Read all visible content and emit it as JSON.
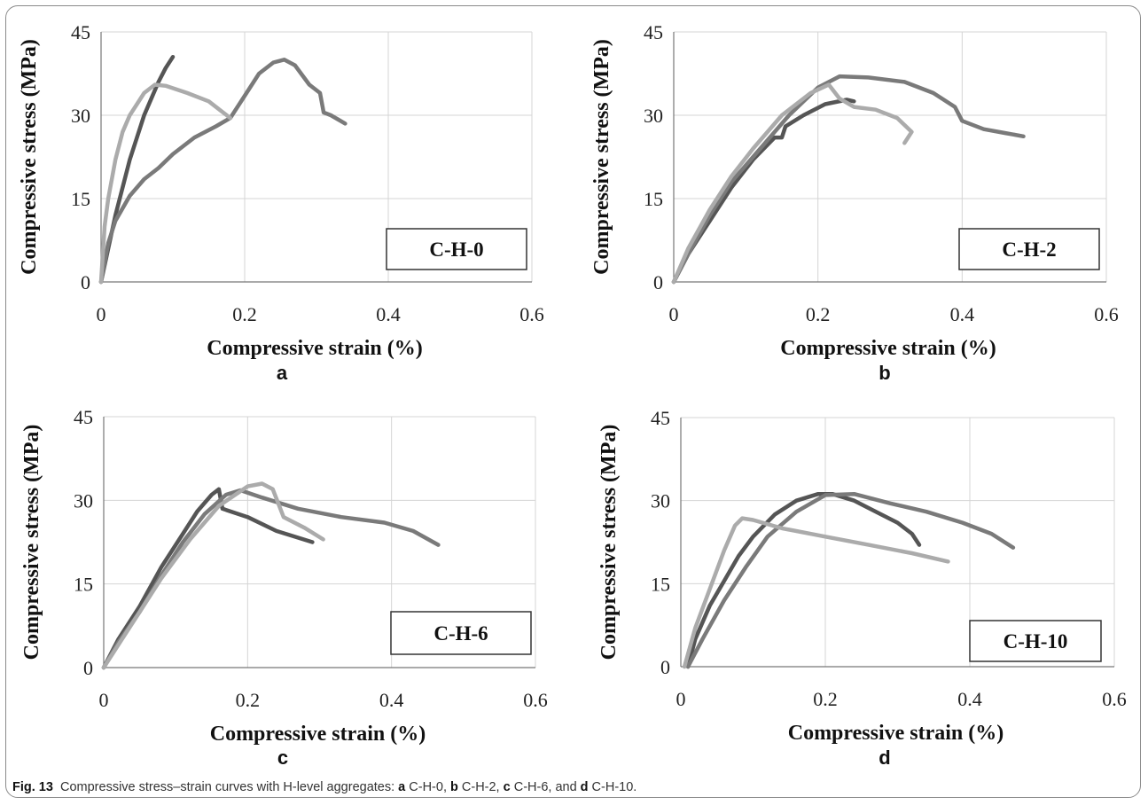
{
  "caption": {
    "fig_label": "Fig. 13",
    "intro": "Compressive stress–strain curves with H-level aggregates: ",
    "parts": [
      {
        "letter": "a",
        "text": " C-H-0, "
      },
      {
        "letter": "b",
        "text": " C-H-2, "
      },
      {
        "letter": "c",
        "text": " C-H-6, and "
      },
      {
        "letter": "d",
        "text": " C-H-10."
      }
    ]
  },
  "colors": {
    "dark": "#555555",
    "medium": "#7a7a7a",
    "light": "#ababab",
    "grid": "#d4d4d4",
    "axis": "#777777"
  },
  "chart_data": [
    {
      "type": "line",
      "panel": "a",
      "label": "C-H-0",
      "xlabel": "Compressive strain (%)",
      "ylabel": "Compressive stress (MPa)",
      "xlim": [
        0,
        0.6
      ],
      "ylim": [
        0,
        45
      ],
      "xticks": [
        "0",
        "0.2",
        "0.4",
        "0.6"
      ],
      "yticks": [
        "0",
        "15",
        "30",
        "45"
      ],
      "grid": true,
      "series": [
        {
          "color": "#555555",
          "x": [
            0,
            0.01,
            0.02,
            0.03,
            0.04,
            0.05,
            0.06,
            0.07,
            0.08,
            0.09,
            0.1
          ],
          "y": [
            0,
            6,
            12,
            17,
            22,
            26,
            30,
            33,
            36,
            38.5,
            40.5
          ]
        },
        {
          "color": "#7a7a7a",
          "x": [
            0,
            0.01,
            0.02,
            0.04,
            0.06,
            0.08,
            0.1,
            0.13,
            0.16,
            0.18,
            0.2,
            0.22,
            0.24,
            0.255,
            0.27,
            0.29,
            0.305,
            0.31,
            0.32,
            0.34
          ],
          "y": [
            0,
            7,
            11,
            15.5,
            18.5,
            20.5,
            23,
            26,
            28,
            29.5,
            33.5,
            37.5,
            39.5,
            40,
            39,
            35.5,
            34,
            30.5,
            30,
            28.5
          ]
        },
        {
          "color": "#ababab",
          "x": [
            0,
            0.005,
            0.01,
            0.02,
            0.03,
            0.04,
            0.05,
            0.06,
            0.075,
            0.09,
            0.12,
            0.15,
            0.17,
            0.18
          ],
          "y": [
            0,
            10,
            15,
            22,
            27,
            30,
            32,
            34,
            35.5,
            35.3,
            34,
            32.5,
            30.5,
            29.5
          ]
        }
      ]
    },
    {
      "type": "line",
      "panel": "b",
      "label": "C-H-2",
      "xlabel": "Compressive strain (%)",
      "ylabel": "Compressive stress (MPa)",
      "xlim": [
        0,
        0.6
      ],
      "ylim": [
        0,
        45
      ],
      "xticks": [
        "0",
        "0.2",
        "0.4",
        "0.6"
      ],
      "yticks": [
        "0",
        "15",
        "30",
        "45"
      ],
      "grid": true,
      "series": [
        {
          "color": "#555555",
          "x": [
            0,
            0.02,
            0.05,
            0.08,
            0.11,
            0.14,
            0.15,
            0.155,
            0.18,
            0.21,
            0.24,
            0.25
          ],
          "y": [
            0,
            5,
            11,
            17,
            22,
            26,
            26,
            28,
            30,
            32,
            32.8,
            32.5
          ]
        },
        {
          "color": "#7a7a7a",
          "x": [
            0,
            0.02,
            0.05,
            0.08,
            0.12,
            0.16,
            0.2,
            0.23,
            0.27,
            0.32,
            0.36,
            0.39,
            0.4,
            0.43,
            0.46,
            0.485
          ],
          "y": [
            0,
            5,
            12,
            18,
            24,
            30,
            35,
            37,
            36.8,
            36,
            34,
            31.5,
            29,
            27.5,
            26.8,
            26.2
          ]
        },
        {
          "color": "#ababab",
          "x": [
            0,
            0.02,
            0.05,
            0.08,
            0.11,
            0.15,
            0.19,
            0.215,
            0.23,
            0.25,
            0.28,
            0.31,
            0.33,
            0.325,
            0.32
          ],
          "y": [
            0,
            6,
            13,
            19,
            24,
            30,
            34,
            35.5,
            33,
            31.5,
            31,
            29.5,
            27,
            26,
            25
          ]
        }
      ]
    },
    {
      "type": "line",
      "panel": "c",
      "label": "C-H-6",
      "xlabel": "Compressive strain (%)",
      "ylabel": "Compressive stress (MPa)",
      "xlim": [
        0,
        0.6
      ],
      "ylim": [
        0,
        45
      ],
      "xticks": [
        "0",
        "0.2",
        "0.4",
        "0.6"
      ],
      "yticks": [
        "0",
        "15",
        "30",
        "45"
      ],
      "grid": true,
      "series": [
        {
          "color": "#555555",
          "x": [
            0,
            0.02,
            0.05,
            0.08,
            0.11,
            0.13,
            0.15,
            0.16,
            0.165,
            0.2,
            0.24,
            0.29
          ],
          "y": [
            0,
            5,
            11,
            18,
            24,
            28,
            31,
            32,
            28.5,
            27,
            24.5,
            22.5
          ]
        },
        {
          "color": "#7a7a7a",
          "x": [
            0,
            0.02,
            0.05,
            0.08,
            0.11,
            0.14,
            0.17,
            0.19,
            0.22,
            0.27,
            0.33,
            0.39,
            0.43,
            0.465
          ],
          "y": [
            0,
            4.5,
            10,
            16.5,
            22.5,
            27.5,
            31,
            31.8,
            30.5,
            28.5,
            27,
            26,
            24.5,
            22
          ]
        },
        {
          "color": "#ababab",
          "x": [
            0,
            0.02,
            0.05,
            0.08,
            0.12,
            0.16,
            0.2,
            0.22,
            0.235,
            0.25,
            0.28,
            0.305
          ],
          "y": [
            0,
            4,
            10,
            16,
            23,
            29,
            32.5,
            33,
            32,
            27,
            25,
            23
          ]
        }
      ]
    },
    {
      "type": "line",
      "panel": "d",
      "label": "C-H-10",
      "xlabel": "Compressive strain (%)",
      "ylabel": "Compressive stress (MPa)",
      "xlim": [
        0,
        0.6
      ],
      "ylim": [
        0,
        45
      ],
      "xticks": [
        "0",
        "0.2",
        "0.4",
        "0.6"
      ],
      "yticks": [
        "0",
        "15",
        "30",
        "45"
      ],
      "grid": true,
      "series": [
        {
          "color": "#555555",
          "x": [
            0.01,
            0.02,
            0.04,
            0.06,
            0.08,
            0.1,
            0.13,
            0.16,
            0.19,
            0.21,
            0.24,
            0.27,
            0.3,
            0.32,
            0.33
          ],
          "y": [
            0,
            5,
            11,
            15.5,
            20,
            23.5,
            27.5,
            30,
            31.2,
            31.2,
            30,
            28,
            26,
            24,
            22
          ]
        },
        {
          "color": "#7a7a7a",
          "x": [
            0.01,
            0.03,
            0.06,
            0.09,
            0.12,
            0.16,
            0.2,
            0.24,
            0.29,
            0.34,
            0.39,
            0.43,
            0.46
          ],
          "y": [
            0,
            5,
            12,
            18,
            23.5,
            28,
            31,
            31.2,
            29.5,
            28,
            26,
            24,
            21.5
          ]
        },
        {
          "color": "#ababab",
          "x": [
            0.005,
            0.02,
            0.04,
            0.06,
            0.075,
            0.085,
            0.1,
            0.14,
            0.2,
            0.26,
            0.32,
            0.37
          ],
          "y": [
            0,
            7,
            14,
            21,
            25.5,
            26.8,
            26.5,
            25,
            23.5,
            22,
            20.5,
            19
          ]
        }
      ]
    }
  ]
}
